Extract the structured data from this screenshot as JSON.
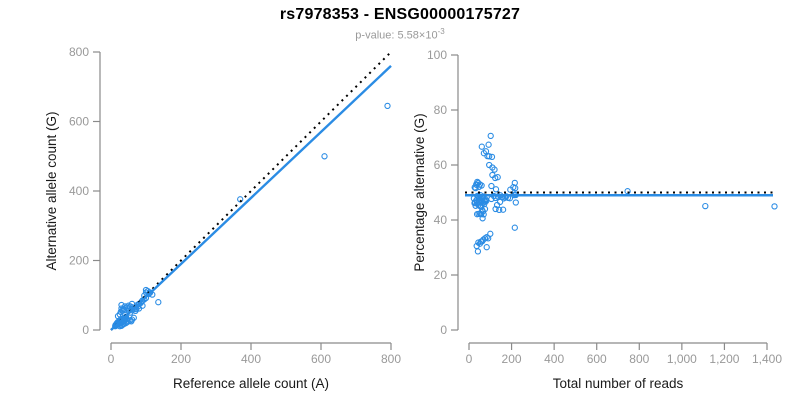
{
  "header": {
    "title": "rs7978353 - ENSG00000175727",
    "pvalue_prefix": "p-value: 5.58×10",
    "pvalue_exponent": "-3"
  },
  "colors": {
    "accent_blue": "#2B8CE4",
    "line_black": "#000000",
    "axis_gray": "#8a8a8a",
    "tick_label_gray": "#999999",
    "axis_title_color": "#1a1a1a"
  },
  "samples_ref_alt": [
    [
      12,
      11
    ],
    [
      13,
      14
    ],
    [
      14,
      12
    ],
    [
      15,
      16
    ],
    [
      15,
      13
    ],
    [
      16,
      18
    ],
    [
      17,
      14
    ],
    [
      17,
      19
    ],
    [
      18,
      16
    ],
    [
      18,
      21
    ],
    [
      19,
      17
    ],
    [
      20,
      19
    ],
    [
      20,
      23
    ],
    [
      21,
      18
    ],
    [
      22,
      21
    ],
    [
      22,
      16
    ],
    [
      23,
      25
    ],
    [
      24,
      20
    ],
    [
      24,
      27
    ],
    [
      25,
      22
    ],
    [
      26,
      24
    ],
    [
      26,
      19
    ],
    [
      27,
      26
    ],
    [
      28,
      23
    ],
    [
      28,
      31
    ],
    [
      29,
      25
    ],
    [
      30,
      28
    ],
    [
      30,
      22
    ],
    [
      31,
      29
    ],
    [
      32,
      26
    ],
    [
      33,
      31
    ],
    [
      33,
      24
    ],
    [
      34,
      30
    ],
    [
      35,
      27
    ],
    [
      35,
      33
    ],
    [
      36,
      31
    ],
    [
      37,
      28
    ],
    [
      38,
      34
    ],
    [
      38,
      26
    ],
    [
      39,
      33
    ],
    [
      40,
      35
    ],
    [
      40,
      29
    ],
    [
      41,
      37
    ],
    [
      42,
      33
    ],
    [
      43,
      38
    ],
    [
      20,
      40
    ],
    [
      25,
      45
    ],
    [
      28,
      52
    ],
    [
      30,
      62
    ],
    [
      30,
      72
    ],
    [
      32,
      55
    ],
    [
      35,
      60
    ],
    [
      38,
      57
    ],
    [
      40,
      68
    ],
    [
      45,
      65
    ],
    [
      48,
      62
    ],
    [
      50,
      70
    ],
    [
      25,
      11
    ],
    [
      30,
      12
    ],
    [
      30,
      14
    ],
    [
      35,
      16
    ],
    [
      38,
      18
    ],
    [
      42,
      20
    ],
    [
      45,
      22
    ],
    [
      50,
      25
    ],
    [
      55,
      28
    ],
    [
      58,
      25
    ],
    [
      60,
      30
    ],
    [
      65,
      35
    ],
    [
      50,
      55
    ],
    [
      55,
      50
    ],
    [
      55,
      68
    ],
    [
      60,
      57
    ],
    [
      60,
      75
    ],
    [
      62,
      65
    ],
    [
      65,
      60
    ],
    [
      70,
      55
    ],
    [
      70,
      66
    ],
    [
      72,
      60
    ],
    [
      75,
      72
    ],
    [
      78,
      68
    ],
    [
      80,
      62
    ],
    [
      80,
      75
    ],
    [
      85,
      78
    ],
    [
      88,
      82
    ],
    [
      90,
      70
    ],
    [
      90,
      85
    ],
    [
      95,
      88
    ],
    [
      100,
      92
    ],
    [
      100,
      108
    ],
    [
      105,
      112
    ],
    [
      100,
      115
    ],
    [
      110,
      107
    ],
    [
      112,
      108
    ],
    [
      118,
      102
    ],
    [
      108,
      104
    ],
    [
      95,
      99
    ],
    [
      135,
      80
    ],
    [
      369,
      376
    ],
    [
      610,
      500
    ],
    [
      790,
      645
    ]
  ],
  "chart_data": [
    {
      "type": "scatter",
      "name": "allele-counts-scatter",
      "xlabel": "Reference allele count (A)",
      "ylabel": "Alternative allele count (G)",
      "xlim": [
        0,
        800
      ],
      "ylim": [
        0,
        800
      ],
      "xticks": [
        [
          0,
          "0"
        ],
        [
          200,
          "200"
        ],
        [
          400,
          "400"
        ],
        [
          600,
          "600"
        ],
        [
          800,
          "800"
        ]
      ],
      "yticks": [
        [
          0,
          "0"
        ],
        [
          200,
          "200"
        ],
        [
          400,
          "400"
        ],
        [
          600,
          "600"
        ],
        [
          800,
          "800"
        ]
      ],
      "derive": "ref_alt",
      "points_mapping": "x = reference allele count, y = alternative allele count",
      "lines": [
        {
          "name": "identity-line",
          "style": "dotted",
          "color": "#000000",
          "slope": 1,
          "intercept": 0
        },
        {
          "name": "fit-line",
          "style": "solid",
          "color": "#2B8CE4",
          "slope": 0.95,
          "intercept": 0
        }
      ],
      "grid": false,
      "legend": "none"
    },
    {
      "type": "scatter",
      "name": "percentage-vs-reads-scatter",
      "xlabel": "Total number of reads",
      "ylabel": "Percentage alternative (G)",
      "xlim": [
        0,
        1400
      ],
      "ylim": [
        0,
        100
      ],
      "xticks": [
        [
          0,
          "0"
        ],
        [
          200,
          "200"
        ],
        [
          400,
          "400"
        ],
        [
          600,
          "600"
        ],
        [
          800,
          "800"
        ],
        [
          1000,
          "1,000"
        ],
        [
          1200,
          "1,200"
        ],
        [
          1400,
          "1,400"
        ]
      ],
      "yticks": [
        [
          0,
          "0"
        ],
        [
          20,
          "20"
        ],
        [
          40,
          "40"
        ],
        [
          60,
          "60"
        ],
        [
          80,
          "80"
        ],
        [
          100,
          "100"
        ]
      ],
      "derive": "total_pct",
      "points_mapping": "x = ref+alt total reads, y = alt/(ref+alt)*100",
      "lines": [
        {
          "name": "expected-line",
          "style": "dotted",
          "color": "#000000",
          "y": 50
        },
        {
          "name": "fit-line",
          "style": "solid",
          "color": "#2B8CE4",
          "y": 49
        }
      ],
      "grid": false,
      "legend": "none"
    }
  ]
}
